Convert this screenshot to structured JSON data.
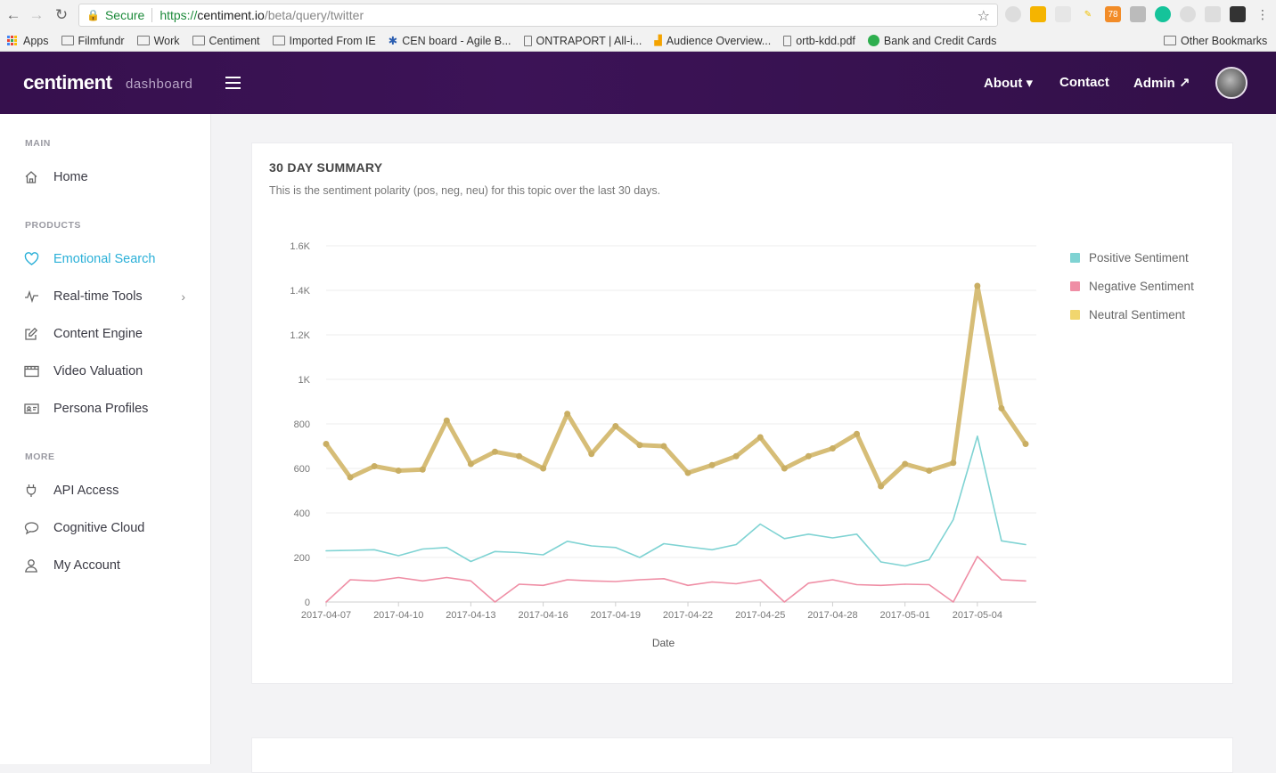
{
  "browser": {
    "secure_label": "Secure",
    "url_scheme": "https://",
    "url_host": "centiment.io",
    "url_path": "/beta/query/twitter",
    "bookmarks": [
      "Apps",
      "Filmfundr",
      "Work",
      "Centiment",
      "Imported From IE",
      "CEN board - Agile B...",
      "ONTRAPORT | All-i...",
      "Audience Overview...",
      "ortb-kdd.pdf",
      "Bank and Credit Cards"
    ],
    "other_bookmarks": "Other Bookmarks",
    "ext_badge": "78"
  },
  "header": {
    "logo": "centiment",
    "logo_sub": "dashboard",
    "nav": {
      "about": "About ▾",
      "contact": "Contact",
      "admin": "Admin ↗"
    }
  },
  "sidebar": {
    "main_heading": "MAIN",
    "products_heading": "PRODUCTS",
    "more_heading": "MORE",
    "items": {
      "home": "Home",
      "emotional_search": "Emotional Search",
      "realtime_tools": "Real-time Tools",
      "content_engine": "Content Engine",
      "video_valuation": "Video Valuation",
      "persona_profiles": "Persona Profiles",
      "api_access": "API Access",
      "cognitive_cloud": "Cognitive Cloud",
      "my_account": "My Account"
    }
  },
  "summary": {
    "title": "30 DAY SUMMARY",
    "subtitle": "This is the sentiment polarity (pos, neg, neu) for this topic over the last 30 days."
  },
  "colors": {
    "positive": "#7fd3d3",
    "negative": "#ef8ea5",
    "neutral": "#d6bd77",
    "accent": "#2bb0d8"
  },
  "chart_data": {
    "type": "line",
    "xlabel": "Date",
    "ylabel": "",
    "ylim": [
      0,
      1600
    ],
    "yticks": [
      0,
      200,
      400,
      600,
      800,
      1000,
      1200,
      1400,
      1600
    ],
    "ytick_labels": [
      "0",
      "200",
      "400",
      "600",
      "800",
      "1K",
      "1.2K",
      "1.4K",
      "1.6K"
    ],
    "xtick_labels": [
      "2017-04-07",
      "2017-04-10",
      "2017-04-13",
      "2017-04-16",
      "2017-04-19",
      "2017-04-22",
      "2017-04-25",
      "2017-04-28",
      "2017-05-01",
      "2017-05-04"
    ],
    "x_count": 30,
    "series": [
      {
        "name": "Positive Sentiment",
        "values": [
          230,
          232,
          235,
          208,
          238,
          245,
          182,
          227,
          222,
          212,
          273,
          252,
          245,
          200,
          262,
          248,
          235,
          258,
          350,
          285,
          305,
          288,
          305,
          180,
          162,
          190,
          370,
          745,
          275,
          258
        ]
      },
      {
        "name": "Negative Sentiment",
        "values": [
          0,
          100,
          95,
          110,
          95,
          110,
          95,
          0,
          80,
          75,
          100,
          95,
          92,
          100,
          105,
          75,
          90,
          82,
          100,
          0,
          85,
          100,
          78,
          75,
          80,
          78,
          0,
          205,
          100,
          95
        ]
      },
      {
        "name": "Neutral Sentiment",
        "values": [
          710,
          560,
          610,
          590,
          595,
          815,
          620,
          675,
          655,
          600,
          845,
          665,
          790,
          705,
          700,
          580,
          615,
          655,
          740,
          600,
          655,
          690,
          755,
          520,
          620,
          590,
          625,
          1420,
          870,
          710
        ]
      }
    ]
  }
}
